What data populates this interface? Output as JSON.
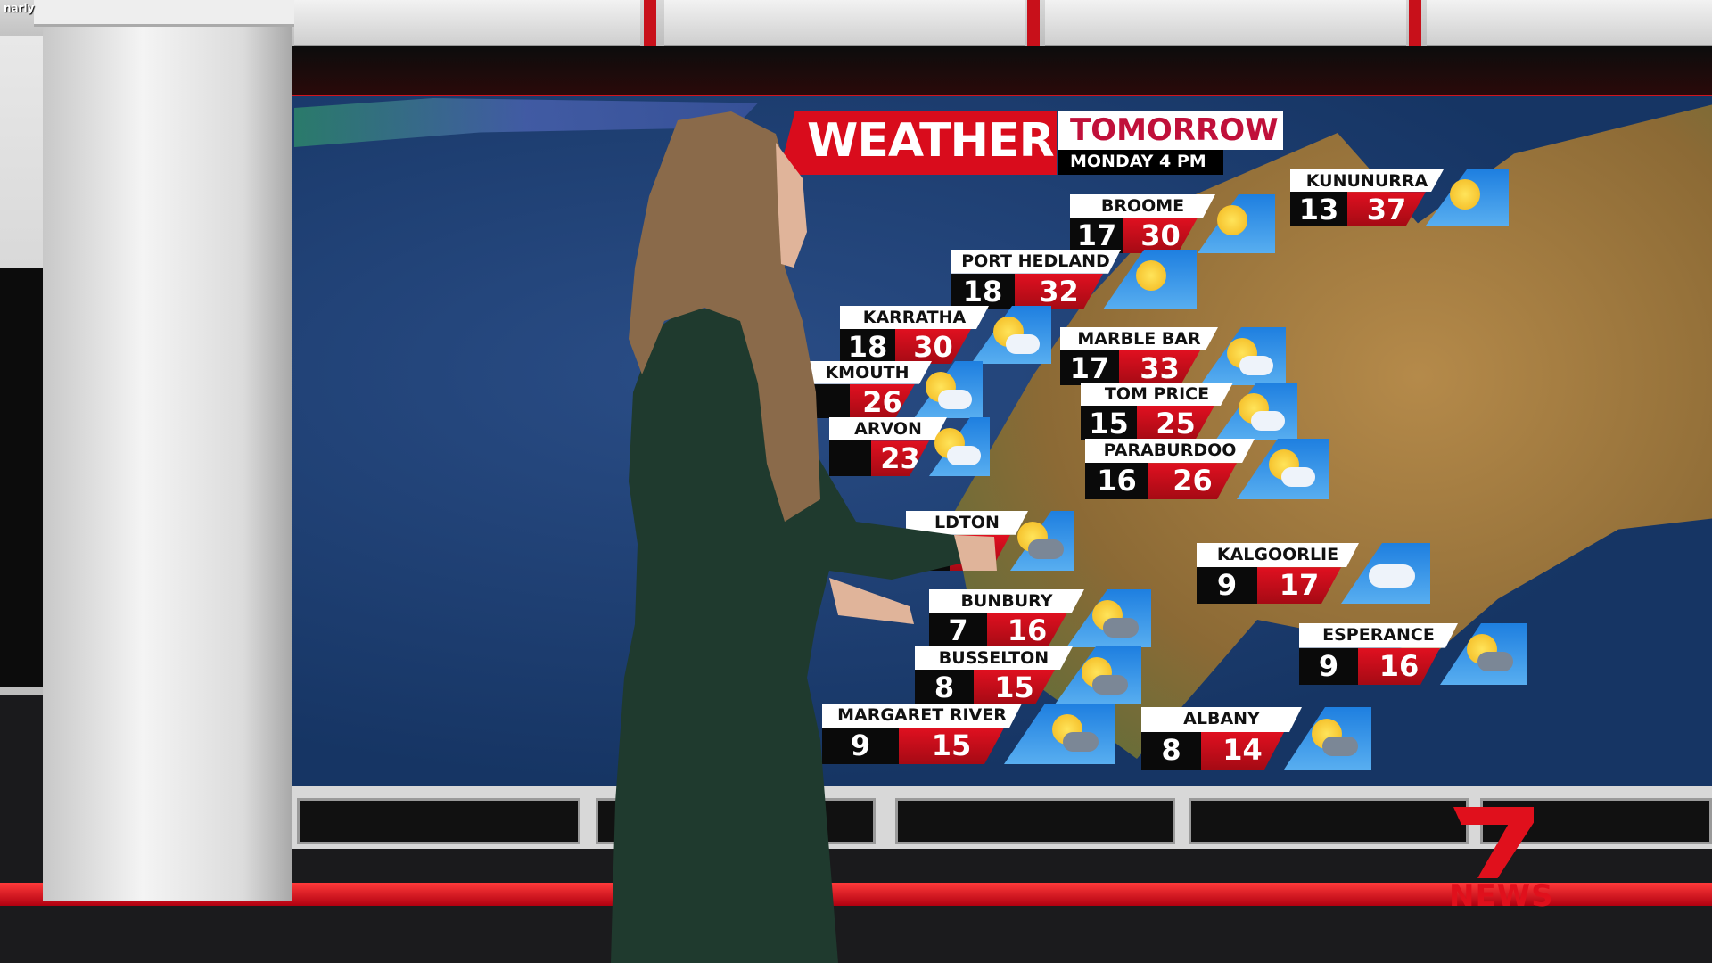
{
  "watermark": "narly",
  "header": {
    "title": "WEATHER",
    "subtitle": "TOMORROW",
    "time": "MONDAY 4 PM"
  },
  "logo": {
    "brand": "7NEWS",
    "word": "NEWS",
    "color": "#e0101c"
  },
  "colors": {
    "accent": "#d90c1c",
    "icon_panel": "#1e7fe0",
    "min_box": "#0a0a0a"
  },
  "cities": [
    {
      "name": "BROOME",
      "min": "17",
      "max": "30",
      "icon": "sunny-icon"
    },
    {
      "name": "KUNUNURRA",
      "min": "13",
      "max": "37",
      "icon": "sunny-icon"
    },
    {
      "name": "PORT HEDLAND",
      "min": "18",
      "max": "32",
      "icon": "sunny-icon"
    },
    {
      "name": "KARRATHA",
      "min": "18",
      "max": "30",
      "icon": "partly-cloudy-icon"
    },
    {
      "name": "KMOUTH",
      "min": "",
      "max": "26",
      "icon": "partly-cloudy-icon"
    },
    {
      "name": "ARVON",
      "min": "",
      "max": "23",
      "icon": "partly-cloudy-icon"
    },
    {
      "name": "MARBLE BAR",
      "min": "17",
      "max": "33",
      "icon": "partly-cloudy-icon"
    },
    {
      "name": "TOM PRICE",
      "min": "15",
      "max": "25",
      "icon": "partly-cloudy-icon"
    },
    {
      "name": "PARABURDOO",
      "min": "16",
      "max": "26",
      "icon": "partly-cloudy-icon"
    },
    {
      "name": "LDTON",
      "min": "",
      "max": "",
      "icon": "sun-showers-icon"
    },
    {
      "name": "KALGOORLIE",
      "min": "9",
      "max": "17",
      "icon": "cloudy-icon"
    },
    {
      "name": "BUNBURY",
      "min": "7",
      "max": "16",
      "icon": "sun-showers-icon"
    },
    {
      "name": "BUSSELTON",
      "min": "8",
      "max": "15",
      "icon": "sun-showers-icon"
    },
    {
      "name": "MARGARET RIVER",
      "min": "9",
      "max": "15",
      "icon": "sun-showers-icon"
    },
    {
      "name": "ALBANY",
      "min": "8",
      "max": "14",
      "icon": "sun-showers-icon"
    },
    {
      "name": "ESPERANCE",
      "min": "9",
      "max": "16",
      "icon": "sun-showers-icon"
    }
  ]
}
